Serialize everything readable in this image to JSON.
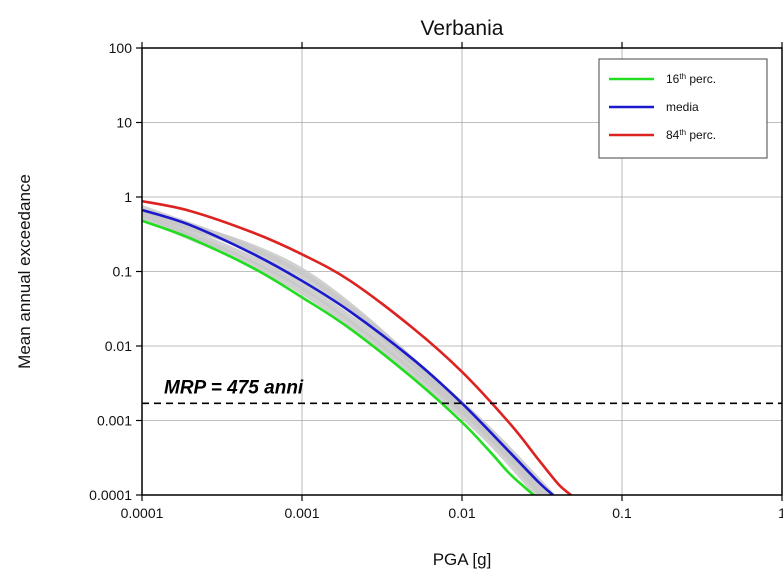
{
  "chart_data": {
    "type": "line",
    "title": "Verbania",
    "xlabel": "PGA [g]",
    "ylabel": "Mean annual exceedance",
    "x_scale": "log",
    "y_scale": "log",
    "xlim": [
      0.0001,
      1
    ],
    "ylim": [
      0.0001,
      100
    ],
    "grid": true,
    "legend_position": "top-right",
    "x_ticks": [
      "0.0001",
      "0.001",
      "0.01",
      "0.1",
      "1"
    ],
    "y_ticks": [
      "0.0001",
      "0.001",
      "0.01",
      "0.1",
      "1",
      "10",
      "100"
    ],
    "series": [
      {
        "name": "16th perc.",
        "name_base": "16",
        "name_sup": "th",
        "name_rest": " perc.",
        "color": "#22dd22",
        "x": [
          0.0001,
          0.0002,
          0.0005,
          0.001,
          0.002,
          0.005,
          0.01,
          0.015,
          0.02,
          0.028
        ],
        "y": [
          0.48,
          0.28,
          0.11,
          0.045,
          0.017,
          0.0036,
          0.00095,
          0.00038,
          0.00019,
          0.0001
        ]
      },
      {
        "name": "media",
        "color": "#1a1acc",
        "x": [
          0.0001,
          0.0002,
          0.0005,
          0.001,
          0.002,
          0.005,
          0.01,
          0.02,
          0.03,
          0.037
        ],
        "y": [
          0.67,
          0.42,
          0.17,
          0.075,
          0.029,
          0.0065,
          0.0017,
          0.00037,
          0.00015,
          0.0001
        ]
      },
      {
        "name": "84th perc.",
        "name_base": "84",
        "name_sup": "th",
        "name_rest": " perc.",
        "color": "#dd2222",
        "x": [
          0.0001,
          0.0002,
          0.0005,
          0.001,
          0.002,
          0.005,
          0.01,
          0.02,
          0.03,
          0.04,
          0.048
        ],
        "y": [
          0.88,
          0.65,
          0.33,
          0.17,
          0.075,
          0.017,
          0.0045,
          0.0009,
          0.0003,
          0.00014,
          0.0001
        ]
      }
    ],
    "background_curves": {
      "color": "#c8c8c8",
      "curves": [
        {
          "x": [
            0.0001,
            0.001,
            0.01,
            0.03
          ],
          "y": [
            0.55,
            0.055,
            0.0012,
            0.0001
          ]
        },
        {
          "x": [
            0.0001,
            0.001,
            0.01,
            0.032
          ],
          "y": [
            0.6,
            0.065,
            0.0014,
            0.0001
          ]
        },
        {
          "x": [
            0.0001,
            0.001,
            0.01,
            0.034
          ],
          "y": [
            0.62,
            0.1,
            0.0015,
            0.0001
          ]
        },
        {
          "x": [
            0.0001,
            0.001,
            0.01,
            0.036
          ],
          "y": [
            0.7,
            0.09,
            0.0016,
            0.0001
          ]
        }
      ]
    },
    "reference_line": {
      "label": "MRP = 475 anni",
      "y": 0.0017,
      "style": "dashed"
    }
  }
}
